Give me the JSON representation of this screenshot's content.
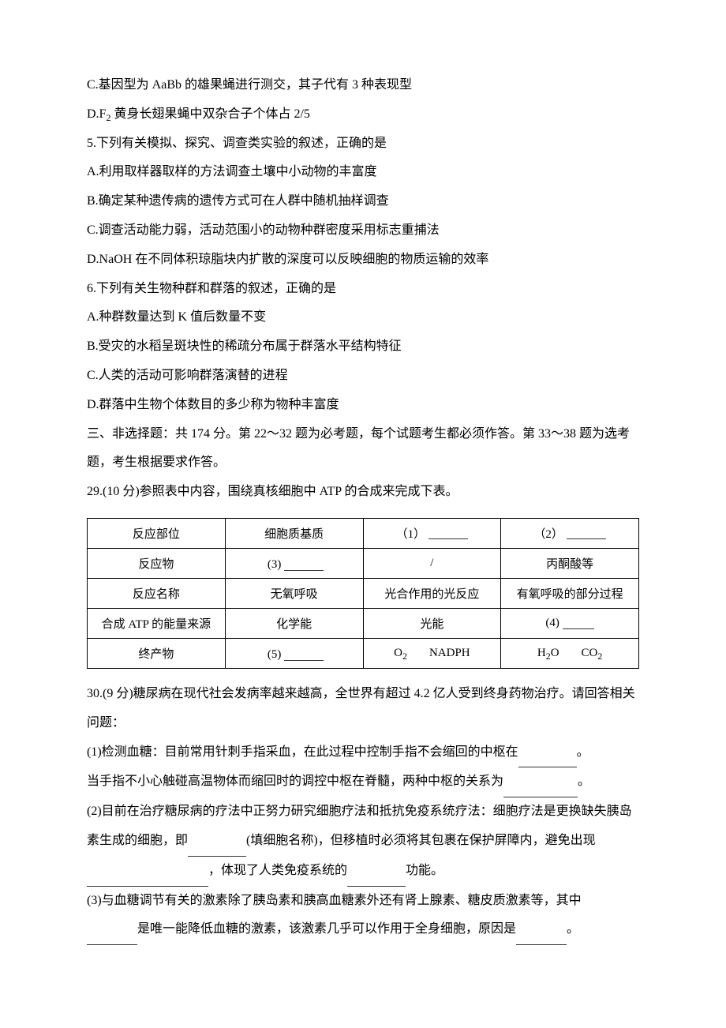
{
  "choices": {
    "c4c": "C.基因型为 AaBb 的雄果蝇进行测交，其子代有 3 种表现型",
    "c4d_pre": "D.F",
    "c4d_sub": "2",
    "c4d_post": " 黄身长翅果蝇中双杂合子个体占 2/5"
  },
  "q5": {
    "stem": "5.下列有关模拟、探究、调查类实验的叙述，正确的是",
    "a": "A.利用取样器取样的方法调查土壤中小动物的丰富度",
    "b": "B.确定某种遗传病的遗传方式可在人群中随机抽样调查",
    "c": "C.调查活动能力弱，活动范围小的动物种群密度采用标志重捕法",
    "d": "D.NaOH 在不同体积琼脂块内扩散的深度可以反映细胞的物质运输的效率"
  },
  "q6": {
    "stem": "6.下列有关生物种群和群落的叙述，正确的是",
    "a": "A.种群数量达到 K 值后数量不变",
    "b": "B.受灾的水稻呈斑块性的稀疏分布属于群落水平结构特征",
    "c": "C.人类的活动可影响群落演替的进程",
    "d": "D.群落中生物个体数目的多少称为物种丰富度"
  },
  "section": "三、非选择题：共 174 分。第 22～32 题为必考题，每个试题考生都必须作答。第 33～38 题为选考题，考生根据要求作答。",
  "q29": {
    "stem": "29.(10 分)参照表中内容，围绕真核细胞中 ATP 的合成来完成下表。",
    "table": {
      "col_widths": [
        "25%",
        "25%",
        "25%",
        "25%"
      ],
      "rows": [
        [
          "反应部位",
          "细胞质基质",
          {
            "num": "（1）",
            "blank": true
          },
          {
            "num": "（2）",
            "blank": true
          }
        ],
        [
          "反应物",
          {
            "num": "(3)",
            "blank": true,
            "prepad": true
          },
          "/",
          "丙酮酸等"
        ],
        [
          "反应名称",
          "无氧呼吸",
          "光合作用的光反应",
          "有氧呼吸的部分过程"
        ],
        [
          "合成 ATP 的能量来源",
          "化学能",
          "光能",
          {
            "num": "(4)",
            "blank": true,
            "sm": true
          }
        ],
        [
          "终产物",
          {
            "num": "(5)",
            "blank": true,
            "prepad": true
          },
          {
            "chem": [
              "O",
              "2",
              "gap",
              "NADPH"
            ]
          },
          {
            "chem": [
              "H",
              "2",
              "O",
              "gap",
              "CO",
              "2"
            ]
          }
        ]
      ]
    }
  },
  "q30": {
    "stem": "30.(9 分)糖尿病在现代社会发病率越来越高，全世界有超过 4.2 亿人受到终身药物治疗。请回答相关问题：",
    "p1a": "(1)检测血糖：目前常用针刺手指采血，在此过程中控制手指不会缩回的中枢在",
    "p1a_end": "。",
    "p1b": "当手指不小心触碰高温物体而缩回时的调控中枢在脊髓，两种中枢的关系为",
    "p1b_end": "。",
    "p2a": "(2)目前在治疗糖尿病的疗法中正努力研究细胞疗法和抵抗免疫系统疗法：细胞疗法是更换缺失胰岛素生成的细胞，即",
    "p2b": "(填细胞名称)，但移植时必须将其包裹在保护屏障内，避免出现",
    "p2c": "，体现了人类免疫系统的",
    "p2d": "功能。",
    "p3a": "(3)与血糖调节有关的激素除了胰岛素和胰高血糖素外还有肾上腺素、糖皮质激素等，其中",
    "p3b": "是唯一能降低血糖的激素，该激素几乎可以作用于全身细胞，原因是",
    "p3c": "。"
  },
  "blanks": {
    "w_short": 70,
    "w_med": 90,
    "w_long": 150,
    "w_xlong": 60
  },
  "style": {
    "font_size": 16,
    "line_height": 2.3,
    "text_color": "#000000",
    "blank_color": "#333",
    "page_bg": "#ffffff",
    "table_border": "#000"
  }
}
